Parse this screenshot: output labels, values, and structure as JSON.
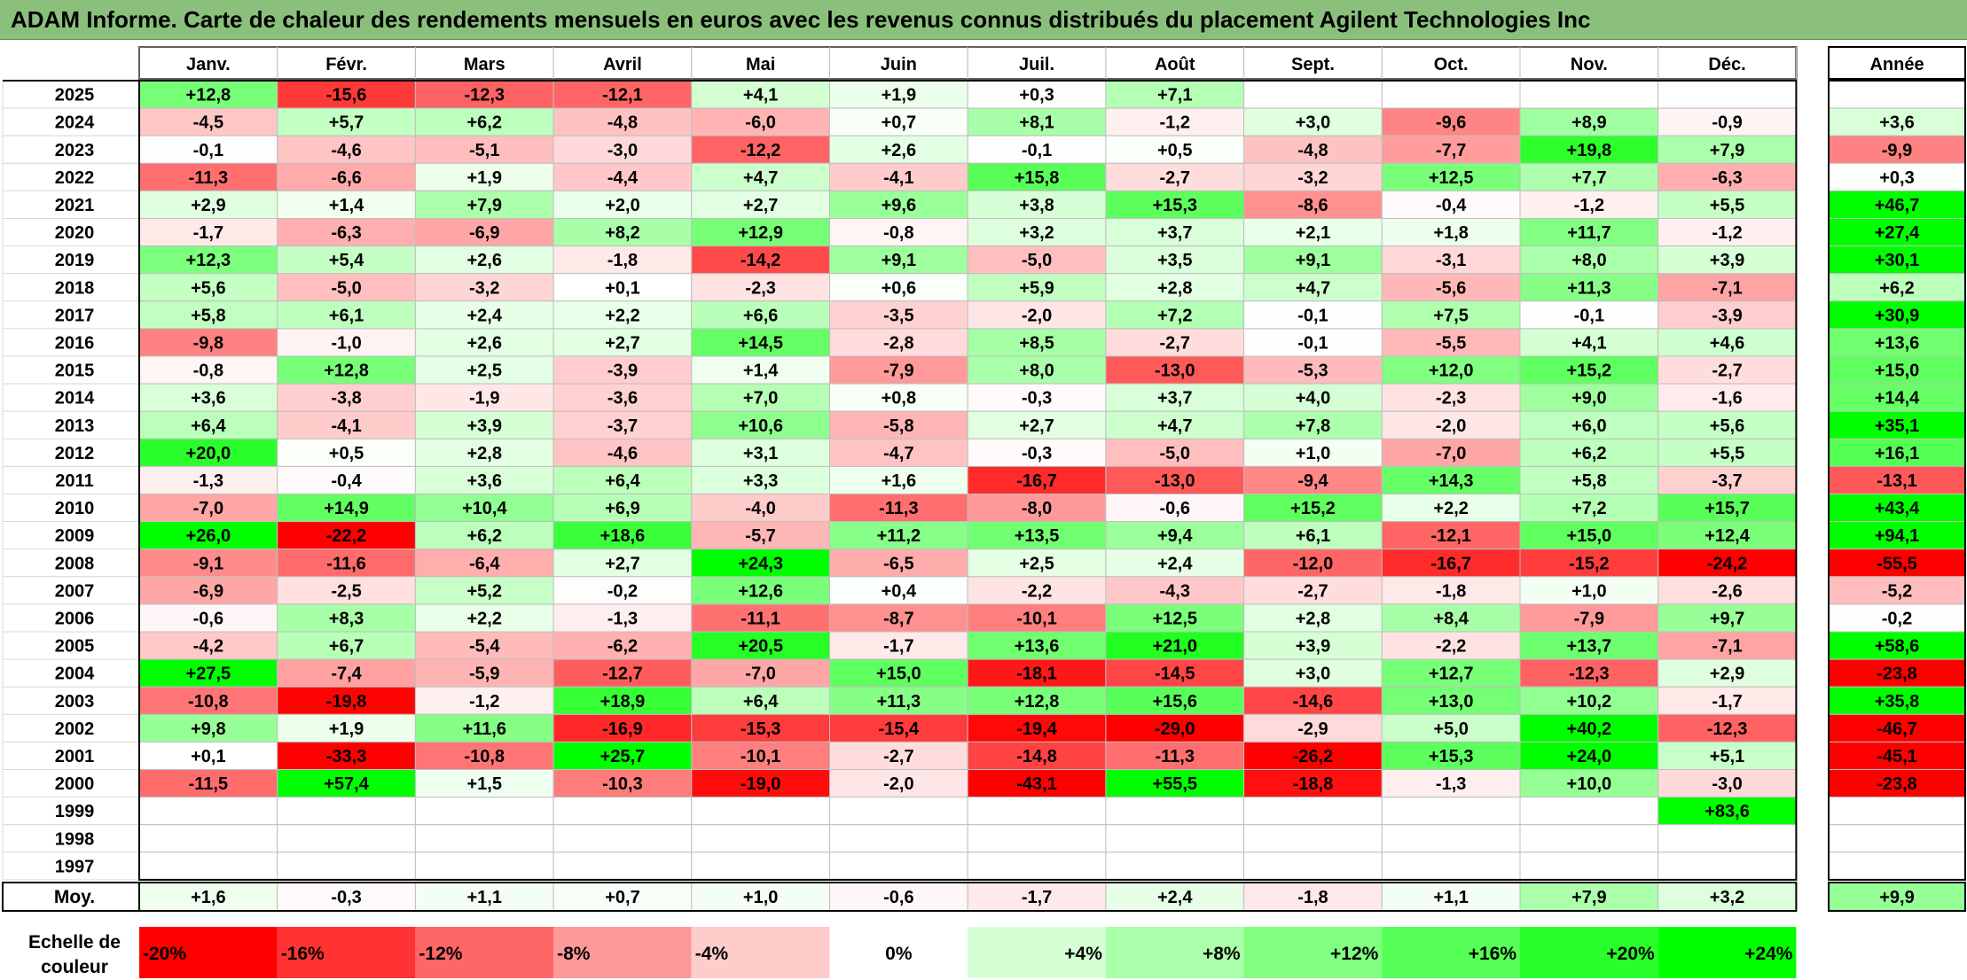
{
  "title": "ADAM Informe. Carte de chaleur des rendements mensuels en euros avec les revenus connus distribués du placement Agilent Technologies Inc",
  "chart_data": {
    "type": "heatmap",
    "months": [
      "Janv.",
      "Févr.",
      "Mars",
      "Avril",
      "Mai",
      "Juin",
      "Juil.",
      "Août",
      "Sept.",
      "Oct.",
      "Nov.",
      "Déc."
    ],
    "year_header": "Année",
    "rows": [
      {
        "year": "2025",
        "values": [
          "+12,8",
          "-15,6",
          "-12,3",
          "-12,1",
          "+4,1",
          "+1,9",
          "+0,3",
          "+7,1",
          "",
          "",
          "",
          ""
        ],
        "annual": ""
      },
      {
        "year": "2024",
        "values": [
          "-4,5",
          "+5,7",
          "+6,2",
          "-4,8",
          "-6,0",
          "+0,7",
          "+8,1",
          "-1,2",
          "+3,0",
          "-9,6",
          "+8,9",
          "-0,9"
        ],
        "annual": "+3,6"
      },
      {
        "year": "2023",
        "values": [
          "-0,1",
          "-4,6",
          "-5,1",
          "-3,0",
          "-12,2",
          "+2,6",
          "-0,1",
          "+0,5",
          "-4,8",
          "-7,7",
          "+19,8",
          "+7,9"
        ],
        "annual": "-9,9"
      },
      {
        "year": "2022",
        "values": [
          "-11,3",
          "-6,6",
          "+1,9",
          "-4,4",
          "+4,7",
          "-4,1",
          "+15,8",
          "-2,7",
          "-3,2",
          "+12,5",
          "+7,7",
          "-6,3"
        ],
        "annual": "+0,3"
      },
      {
        "year": "2021",
        "values": [
          "+2,9",
          "+1,4",
          "+7,9",
          "+2,0",
          "+2,7",
          "+9,6",
          "+3,8",
          "+15,3",
          "-8,6",
          "-0,4",
          "-1,2",
          "+5,5"
        ],
        "annual": "+46,7"
      },
      {
        "year": "2020",
        "values": [
          "-1,7",
          "-6,3",
          "-6,9",
          "+8,2",
          "+12,9",
          "-0,8",
          "+3,2",
          "+3,7",
          "+2,1",
          "+1,8",
          "+11,7",
          "-1,2"
        ],
        "annual": "+27,4"
      },
      {
        "year": "2019",
        "values": [
          "+12,3",
          "+5,4",
          "+2,6",
          "-1,8",
          "-14,2",
          "+9,1",
          "-5,0",
          "+3,5",
          "+9,1",
          "-3,1",
          "+8,0",
          "+3,9"
        ],
        "annual": "+30,1"
      },
      {
        "year": "2018",
        "values": [
          "+5,6",
          "-5,0",
          "-3,2",
          "+0,1",
          "-2,3",
          "+0,6",
          "+5,9",
          "+2,8",
          "+4,7",
          "-5,6",
          "+11,3",
          "-7,1"
        ],
        "annual": "+6,2"
      },
      {
        "year": "2017",
        "values": [
          "+5,8",
          "+6,1",
          "+2,4",
          "+2,2",
          "+6,6",
          "-3,5",
          "-2,0",
          "+7,2",
          "-0,1",
          "+7,5",
          "-0,1",
          "-3,9"
        ],
        "annual": "+30,9"
      },
      {
        "year": "2016",
        "values": [
          "-9,8",
          "-1,0",
          "+2,6",
          "+2,7",
          "+14,5",
          "-2,8",
          "+8,5",
          "-2,7",
          "-0,1",
          "-5,5",
          "+4,1",
          "+4,6"
        ],
        "annual": "+13,6"
      },
      {
        "year": "2015",
        "values": [
          "-0,8",
          "+12,8",
          "+2,5",
          "-3,9",
          "+1,4",
          "-7,9",
          "+8,0",
          "-13,0",
          "-5,3",
          "+12,0",
          "+15,2",
          "-2,7"
        ],
        "annual": "+15,0"
      },
      {
        "year": "2014",
        "values": [
          "+3,6",
          "-3,8",
          "-1,9",
          "-3,6",
          "+7,0",
          "+0,8",
          "-0,3",
          "+3,7",
          "+4,0",
          "-2,3",
          "+9,0",
          "-1,6"
        ],
        "annual": "+14,4"
      },
      {
        "year": "2013",
        "values": [
          "+6,4",
          "-4,1",
          "+3,9",
          "-3,7",
          "+10,6",
          "-5,8",
          "+2,7",
          "+4,7",
          "+7,8",
          "-2,0",
          "+6,0",
          "+5,6"
        ],
        "annual": "+35,1"
      },
      {
        "year": "2012",
        "values": [
          "+20,0",
          "+0,5",
          "+2,8",
          "-4,6",
          "+3,1",
          "-4,7",
          "-0,3",
          "-5,0",
          "+1,0",
          "-7,0",
          "+6,2",
          "+5,5"
        ],
        "annual": "+16,1"
      },
      {
        "year": "2011",
        "values": [
          "-1,3",
          "-0,4",
          "+3,6",
          "+6,4",
          "+3,3",
          "+1,6",
          "-16,7",
          "-13,0",
          "-9,4",
          "+14,3",
          "+5,8",
          "-3,7"
        ],
        "annual": "-13,1"
      },
      {
        "year": "2010",
        "values": [
          "-7,0",
          "+14,9",
          "+10,4",
          "+6,9",
          "-4,0",
          "-11,3",
          "-8,0",
          "-0,6",
          "+15,2",
          "+2,2",
          "+7,2",
          "+15,7"
        ],
        "annual": "+43,4"
      },
      {
        "year": "2009",
        "values": [
          "+26,0",
          "-22,2",
          "+6,2",
          "+18,6",
          "-5,7",
          "+11,2",
          "+13,5",
          "+9,4",
          "+6,1",
          "-12,1",
          "+15,0",
          "+12,4"
        ],
        "annual": "+94,1"
      },
      {
        "year": "2008",
        "values": [
          "-9,1",
          "-11,6",
          "-6,4",
          "+2,7",
          "+24,3",
          "-6,5",
          "+2,5",
          "+2,4",
          "-12,0",
          "-16,7",
          "-15,2",
          "-24,2"
        ],
        "annual": "-55,5"
      },
      {
        "year": "2007",
        "values": [
          "-6,9",
          "-2,5",
          "+5,2",
          "-0,2",
          "+12,6",
          "+0,4",
          "-2,2",
          "-4,3",
          "-2,7",
          "-1,8",
          "+1,0",
          "-2,6"
        ],
        "annual": "-5,2"
      },
      {
        "year": "2006",
        "values": [
          "-0,6",
          "+8,3",
          "+2,2",
          "-1,3",
          "-11,1",
          "-8,7",
          "-10,1",
          "+12,5",
          "+2,8",
          "+8,4",
          "-7,9",
          "+9,7"
        ],
        "annual": "-0,2"
      },
      {
        "year": "2005",
        "values": [
          "-4,2",
          "+6,7",
          "-5,4",
          "-6,2",
          "+20,5",
          "-1,7",
          "+13,6",
          "+21,0",
          "+3,9",
          "-2,2",
          "+13,7",
          "-7,1"
        ],
        "annual": "+58,6"
      },
      {
        "year": "2004",
        "values": [
          "+27,5",
          "-7,4",
          "-5,9",
          "-12,7",
          "-7,0",
          "+15,0",
          "-18,1",
          "-14,5",
          "+3,0",
          "+12,7",
          "-12,3",
          "+2,9"
        ],
        "annual": "-23,8"
      },
      {
        "year": "2003",
        "values": [
          "-10,8",
          "-19,8",
          "-1,2",
          "+18,9",
          "+6,4",
          "+11,3",
          "+12,8",
          "+15,6",
          "-14,6",
          "+13,0",
          "+10,2",
          "-1,7"
        ],
        "annual": "+35,8"
      },
      {
        "year": "2002",
        "values": [
          "+9,8",
          "+1,9",
          "+11,6",
          "-16,9",
          "-15,3",
          "-15,4",
          "-19,4",
          "-29,0",
          "-2,9",
          "+5,0",
          "+40,2",
          "-12,3"
        ],
        "annual": "-46,7"
      },
      {
        "year": "2001",
        "values": [
          "+0,1",
          "-33,3",
          "-10,8",
          "+25,7",
          "-10,1",
          "-2,7",
          "-14,8",
          "-11,3",
          "-26,2",
          "+15,3",
          "+24,0",
          "+5,1"
        ],
        "annual": "-45,1"
      },
      {
        "year": "2000",
        "values": [
          "-11,5",
          "+57,4",
          "+1,5",
          "-10,3",
          "-19,0",
          "-2,0",
          "-43,1",
          "+55,5",
          "-18,8",
          "-1,3",
          "+10,0",
          "-3,0"
        ],
        "annual": "-23,8"
      },
      {
        "year": "1999",
        "values": [
          "",
          "",
          "",
          "",
          "",
          "",
          "",
          "",
          "",
          "",
          "",
          "+83,6"
        ],
        "annual": ""
      },
      {
        "year": "1998",
        "values": [
          "",
          "",
          "",
          "",
          "",
          "",
          "",
          "",
          "",
          "",
          "",
          ""
        ],
        "annual": ""
      },
      {
        "year": "1997",
        "values": [
          "",
          "",
          "",
          "",
          "",
          "",
          "",
          "",
          "",
          "",
          "",
          ""
        ],
        "annual": ""
      }
    ],
    "average": {
      "label": "Moy.",
      "values": [
        "+1,6",
        "-0,3",
        "+1,1",
        "+0,7",
        "+1,0",
        "-0,6",
        "-1,7",
        "+2,4",
        "-1,8",
        "+1,1",
        "+7,9",
        "+3,2"
      ],
      "annual": "+9,9"
    },
    "scale": {
      "label_line1": "Echelle de",
      "label_line2": "couleur",
      "labels": [
        "-20%",
        "-16%",
        "-12%",
        "-8%",
        "-4%",
        "0%",
        "+4%",
        "+8%",
        "+12%",
        "+16%",
        "+20%",
        "+24%"
      ],
      "values": [
        -20,
        -16,
        -12,
        -8,
        -4,
        0,
        4,
        8,
        12,
        16,
        20,
        24
      ]
    },
    "colors": {
      "negative_max": "#ff0000",
      "neutral": "#ffffff",
      "positive_max": "#00ff00",
      "title_bar": "#8ac07c"
    }
  }
}
